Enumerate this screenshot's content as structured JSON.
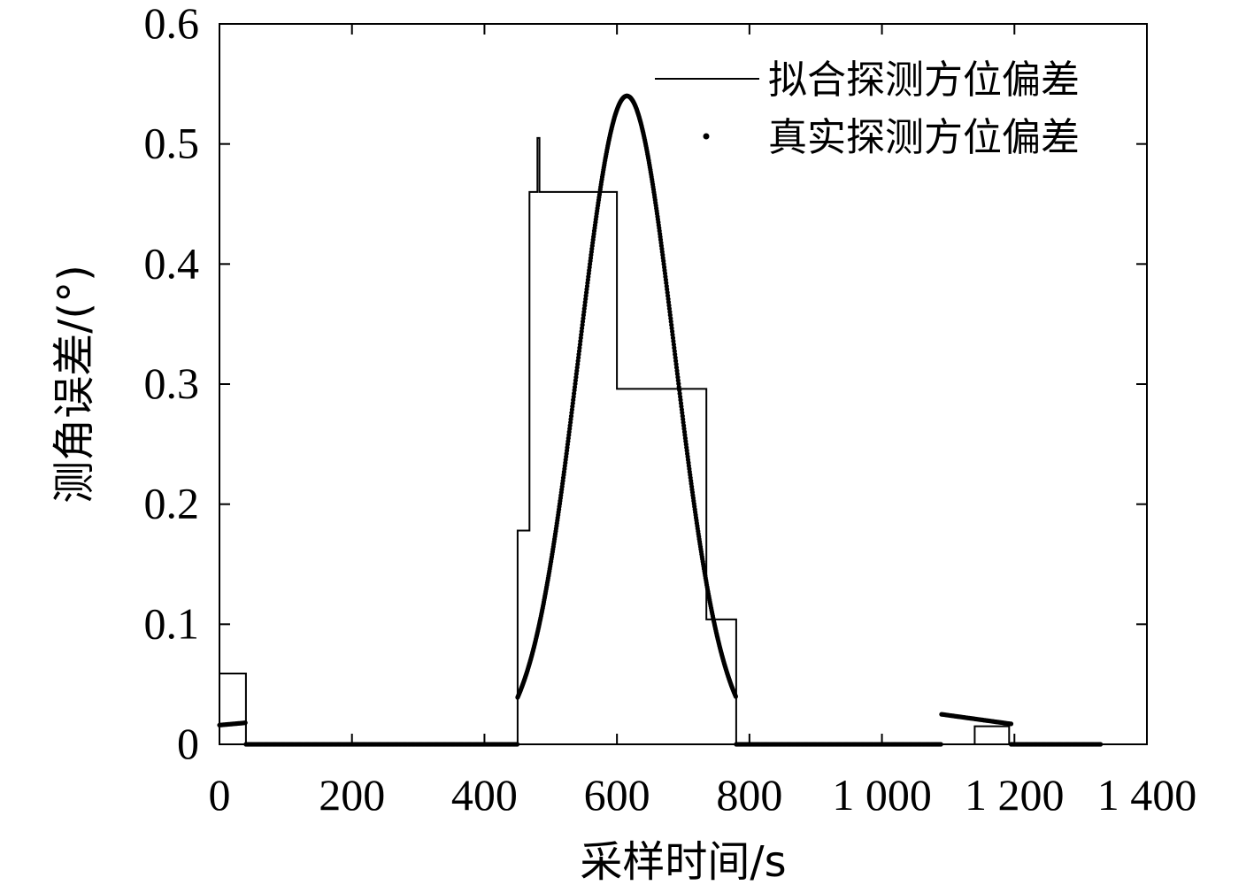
{
  "chart_data": {
    "type": "line",
    "xlabel": "采样时间/s",
    "ylabel": "测角误差/(°)",
    "xlim": [
      0,
      1400
    ],
    "ylim": [
      0,
      0.6
    ],
    "xticks": [
      0,
      200,
      400,
      600,
      800,
      1000,
      1200,
      1400
    ],
    "xtick_labels": [
      "0",
      "200",
      "400",
      "600",
      "800",
      "1 000",
      "1 200",
      "1 400"
    ],
    "yticks": [
      0,
      0.1,
      0.2,
      0.3,
      0.4,
      0.5,
      0.6
    ],
    "ytick_labels": [
      "0",
      "0.1",
      "0.2",
      "0.3",
      "0.4",
      "0.5",
      "0.6"
    ],
    "grid": false,
    "legend_position": "top-right",
    "series": [
      {
        "name": "拟合探测方位偏差",
        "style": "solid-line",
        "color": "#000000",
        "x": [
          0,
          0,
          40,
          40,
          450,
          450,
          468,
          468,
          480,
          480,
          483,
          483,
          486,
          486,
          600,
          600,
          735,
          735,
          780,
          780,
          1140,
          1140,
          1192,
          1192,
          1330
        ],
        "y": [
          0,
          0.059,
          0.059,
          0,
          0,
          0.178,
          0.178,
          0.46,
          0.46,
          0.505,
          0.505,
          0.46,
          0.46,
          0.46,
          0.46,
          0.296,
          0.296,
          0.104,
          0.104,
          0,
          0,
          0.015,
          0.015,
          0,
          0
        ]
      },
      {
        "name": "真实探测方位偏差",
        "style": "dots",
        "color": "#000000",
        "segments": [
          {
            "x": [
              0,
              40
            ],
            "y": [
              0.016,
              0.018
            ]
          },
          {
            "x": [
              40,
              450
            ],
            "y": [
              0,
              0
            ]
          },
          {
            "peak_x": 615,
            "peak_y": 0.54,
            "sigma": 72,
            "x_range": [
              450,
              780
            ]
          },
          {
            "x": [
              780,
              1090
            ],
            "y": [
              0,
              0
            ]
          },
          {
            "x": [
              1090,
              1195
            ],
            "y": [
              0.025,
              0.017
            ]
          },
          {
            "x": [
              1195,
              1330
            ],
            "y": [
              0,
              0
            ]
          }
        ]
      }
    ]
  }
}
